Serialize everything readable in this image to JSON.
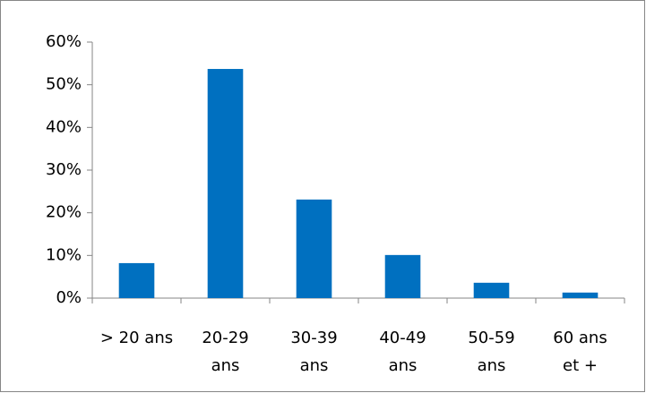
{
  "chart_data": {
    "type": "bar",
    "categories": [
      "> 20 ans",
      "20-29\nans",
      "30-39\nans",
      "40-49\nans",
      "50-59\nans",
      "60 ans\net +"
    ],
    "values": [
      8.2,
      53.7,
      23.1,
      10.1,
      3.6,
      1.3
    ],
    "color": "#0070c0",
    "ylim": [
      0,
      60
    ],
    "yticks": [
      {
        "value": 0,
        "label": "0%"
      },
      {
        "value": 10,
        "label": "10%"
      },
      {
        "value": 20,
        "label": "20%"
      },
      {
        "value": 30,
        "label": "30%"
      },
      {
        "value": 40,
        "label": "40%"
      },
      {
        "value": 50,
        "label": "50%"
      },
      {
        "value": 60,
        "label": "60%"
      }
    ],
    "grid": false
  }
}
